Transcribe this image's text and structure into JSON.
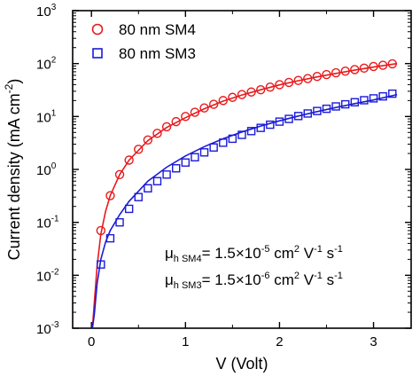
{
  "chart_data": {
    "type": "scatter",
    "xlabel": "V (Volt)",
    "ylabel": {
      "main": "Current density (mA cm",
      "sup": "-2",
      "close": ")"
    },
    "xlim": [
      -0.2,
      3.4
    ],
    "ylim": [
      0.001,
      1000
    ],
    "yscale": "log",
    "x_ticks": [
      0,
      1,
      2,
      3
    ],
    "y_ticks": [
      {
        "value": 0.001,
        "base": "10",
        "exp": "-3"
      },
      {
        "value": 0.01,
        "base": "10",
        "exp": "-2"
      },
      {
        "value": 0.1,
        "base": "10",
        "exp": "-1"
      },
      {
        "value": 1,
        "base": "10",
        "exp": "0"
      },
      {
        "value": 10,
        "base": "10",
        "exp": "1"
      },
      {
        "value": 100,
        "base": "10",
        "exp": "2"
      },
      {
        "value": 1000,
        "base": "10",
        "exp": "3"
      }
    ],
    "legend": {
      "position": "top-left"
    },
    "series": [
      {
        "name": "80 nm SM4",
        "marker": "circle",
        "color": "#e8191c",
        "points": [
          [
            0.1,
            0.07
          ],
          [
            0.2,
            0.32
          ],
          [
            0.3,
            0.8
          ],
          [
            0.4,
            1.5
          ],
          [
            0.5,
            2.4
          ],
          [
            0.6,
            3.6
          ],
          [
            0.7,
            4.8
          ],
          [
            0.8,
            6.4
          ],
          [
            0.9,
            8
          ],
          [
            1.0,
            10
          ],
          [
            1.1,
            12
          ],
          [
            1.2,
            14.5
          ],
          [
            1.3,
            17
          ],
          [
            1.4,
            20
          ],
          [
            1.5,
            23
          ],
          [
            1.6,
            26
          ],
          [
            1.7,
            29
          ],
          [
            1.8,
            32
          ],
          [
            1.9,
            36
          ],
          [
            2.0,
            40
          ],
          [
            2.1,
            44
          ],
          [
            2.2,
            48
          ],
          [
            2.3,
            52
          ],
          [
            2.4,
            57
          ],
          [
            2.5,
            62
          ],
          [
            2.6,
            67
          ],
          [
            2.7,
            72
          ],
          [
            2.8,
            77
          ],
          [
            2.9,
            82
          ],
          [
            3.0,
            88
          ],
          [
            3.1,
            93
          ],
          [
            3.2,
            99
          ]
        ],
        "fit": [
          [
            0.01,
            0.0002
          ],
          [
            0.03,
            0.003
          ],
          [
            0.06,
            0.015
          ],
          [
            0.1,
            0.06
          ],
          [
            0.15,
            0.16
          ],
          [
            0.2,
            0.32
          ],
          [
            0.3,
            0.8
          ],
          [
            0.4,
            1.5
          ],
          [
            0.6,
            3.5
          ],
          [
            0.8,
            6.2
          ],
          [
            1.0,
            9.5
          ],
          [
            1.2,
            14
          ],
          [
            1.4,
            19.5
          ],
          [
            1.6,
            25.5
          ],
          [
            1.8,
            32
          ],
          [
            2.0,
            39.5
          ],
          [
            2.2,
            47.5
          ],
          [
            2.4,
            56
          ],
          [
            2.6,
            65
          ],
          [
            2.8,
            75
          ],
          [
            3.0,
            86
          ],
          [
            3.25,
            100
          ]
        ]
      },
      {
        "name": "80 nm SM3",
        "marker": "square",
        "color": "#1a1ad8",
        "points": [
          [
            0.1,
            0.016
          ],
          [
            0.2,
            0.05
          ],
          [
            0.3,
            0.1
          ],
          [
            0.4,
            0.18
          ],
          [
            0.5,
            0.3
          ],
          [
            0.6,
            0.44
          ],
          [
            0.7,
            0.6
          ],
          [
            0.8,
            0.8
          ],
          [
            0.9,
            1.05
          ],
          [
            1.0,
            1.35
          ],
          [
            1.1,
            1.7
          ],
          [
            1.2,
            2.1
          ],
          [
            1.3,
            2.6
          ],
          [
            1.4,
            3.2
          ],
          [
            1.5,
            3.8
          ],
          [
            1.6,
            4.5
          ],
          [
            1.7,
            5.3
          ],
          [
            1.8,
            6.1
          ],
          [
            1.9,
            7
          ],
          [
            2.0,
            8
          ],
          [
            2.1,
            9
          ],
          [
            2.2,
            10.2
          ],
          [
            2.3,
            11.4
          ],
          [
            2.4,
            12.7
          ],
          [
            2.5,
            14
          ],
          [
            2.6,
            15.5
          ],
          [
            2.7,
            17
          ],
          [
            2.8,
            18.6
          ],
          [
            2.9,
            20.3
          ],
          [
            3.0,
            22
          ],
          [
            3.1,
            24
          ],
          [
            3.2,
            27
          ]
        ],
        "fit": [
          [
            0.01,
            0.0002
          ],
          [
            0.03,
            0.0018
          ],
          [
            0.06,
            0.007
          ],
          [
            0.1,
            0.02
          ],
          [
            0.15,
            0.042
          ],
          [
            0.2,
            0.07
          ],
          [
            0.3,
            0.14
          ],
          [
            0.4,
            0.25
          ],
          [
            0.6,
            0.6
          ],
          [
            0.8,
            1.1
          ],
          [
            1.0,
            1.8
          ],
          [
            1.2,
            2.7
          ],
          [
            1.4,
            3.8
          ],
          [
            1.6,
            5.1
          ],
          [
            1.8,
            6.6
          ],
          [
            2.0,
            8.3
          ],
          [
            2.2,
            10.2
          ],
          [
            2.4,
            12.4
          ],
          [
            2.6,
            14.8
          ],
          [
            2.8,
            17.5
          ],
          [
            3.0,
            20.5
          ],
          [
            3.25,
            26
          ]
        ]
      }
    ],
    "annotations": [
      {
        "mu": "μ",
        "sub": "h SM4",
        "eq": "= 1.5×10",
        "exp": "-5",
        "u1": " cm",
        "e1": "2",
        "u2": " V",
        "e2": "-1",
        "u3": " s",
        "e3": "-1"
      },
      {
        "mu": "μ",
        "sub": "h SM3",
        "eq": "= 1.5×10",
        "exp": "-6",
        "u1": " cm",
        "e1": "2",
        "u2": " V",
        "e2": "-1",
        "u3": " s",
        "e3": "-1"
      }
    ]
  }
}
